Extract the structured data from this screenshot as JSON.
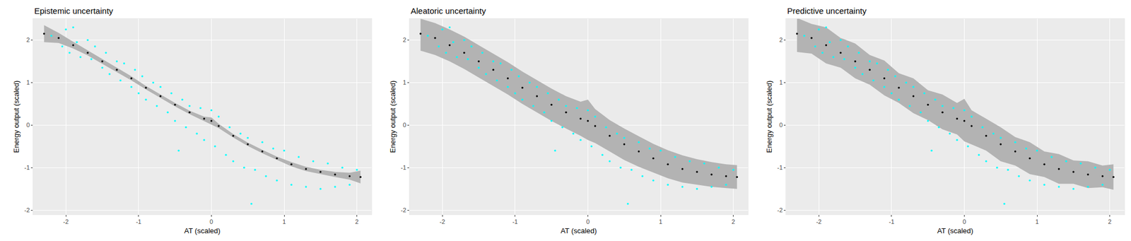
{
  "chart_data": [
    {
      "type": "scatter",
      "title": "Epistemic uncertainty",
      "x_label": "AT (scaled)",
      "y_label": "Energy output (scaled)",
      "xlim": [
        -2.45,
        2.2
      ],
      "ylim": [
        -2.1,
        2.5
      ],
      "xticks": [
        -2,
        -1,
        0,
        1,
        2
      ],
      "yticks": [
        -2,
        -1,
        0,
        1,
        2
      ],
      "grid": true,
      "series": [
        {
          "type": "band",
          "color": "#b3b3b3",
          "x": [
            -2.3,
            -2.1,
            -1.9,
            -1.7,
            -1.5,
            -1.3,
            -1.1,
            -0.9,
            -0.7,
            -0.5,
            -0.3,
            -0.1,
            0,
            0.1,
            0.3,
            0.5,
            0.7,
            0.9,
            1.1,
            1.3,
            1.5,
            1.7,
            1.9,
            2.05
          ],
          "lower": [
            1.95,
            1.93,
            1.8,
            1.64,
            1.44,
            1.25,
            1.05,
            0.84,
            0.64,
            0.44,
            0.26,
            0.1,
            0.02,
            -0.07,
            -0.29,
            -0.49,
            -0.66,
            -0.82,
            -0.97,
            -1.08,
            -1.15,
            -1.22,
            -1.28,
            -1.37
          ],
          "upper": [
            2.35,
            2.17,
            1.96,
            1.76,
            1.56,
            1.35,
            1.15,
            0.92,
            0.72,
            0.52,
            0.34,
            0.2,
            0.18,
            0.03,
            -0.21,
            -0.41,
            -0.58,
            -0.74,
            -0.87,
            -0.98,
            -1.05,
            -1.1,
            -1.12,
            -1.07
          ]
        },
        {
          "type": "scatter",
          "color": "#00ffff",
          "x": [
            -2.2,
            -2.05,
            -2.0,
            -1.95,
            -1.9,
            -1.85,
            -1.8,
            -1.7,
            -1.65,
            -1.6,
            -1.5,
            -1.45,
            -1.4,
            -1.3,
            -1.25,
            -1.2,
            -1.1,
            -1.05,
            -1.0,
            -0.95,
            -0.9,
            -0.8,
            -0.75,
            -0.7,
            -0.6,
            -0.55,
            -0.5,
            -0.4,
            -0.35,
            -0.3,
            -0.2,
            -0.15,
            -0.1,
            0,
            0.05,
            0.1,
            0.2,
            0.25,
            0.3,
            0.4,
            0.45,
            0.5,
            0.6,
            0.7,
            0.75,
            0.85,
            0.9,
            1.0,
            1.1,
            1.2,
            1.3,
            1.4,
            1.5,
            1.6,
            1.7,
            1.8,
            1.9,
            2.0,
            0.55,
            -0.45
          ],
          "values": [
            2.1,
            1.85,
            2.25,
            1.7,
            2.3,
            1.95,
            1.6,
            2.0,
            1.55,
            1.85,
            1.35,
            1.7,
            1.2,
            1.5,
            1.05,
            1.45,
            0.9,
            1.3,
            0.75,
            1.15,
            0.6,
            1.0,
            0.45,
            0.9,
            0.3,
            0.75,
            0.1,
            0.6,
            -0.05,
            0.45,
            -0.2,
            0.4,
            -0.35,
            0.35,
            -0.5,
            0.2,
            -0.7,
            -0.05,
            -0.85,
            -0.2,
            -1.0,
            -0.3,
            -1.05,
            -0.4,
            -1.2,
            -0.55,
            -1.3,
            -0.6,
            -1.4,
            -0.75,
            -1.45,
            -0.85,
            -1.5,
            -0.9,
            -1.45,
            -1.0,
            -1.4,
            -1.05,
            -1.85,
            -0.6
          ]
        },
        {
          "type": "scatter",
          "color": "#000000",
          "x": [
            -2.3,
            -2.1,
            -1.9,
            -1.7,
            -1.5,
            -1.3,
            -1.1,
            -0.9,
            -0.7,
            -0.5,
            -0.3,
            -0.1,
            0,
            0.1,
            0.3,
            0.5,
            0.7,
            0.9,
            1.1,
            1.3,
            1.5,
            1.7,
            1.9,
            2.05
          ],
          "values": [
            2.15,
            2.05,
            1.88,
            1.7,
            1.5,
            1.3,
            1.1,
            0.88,
            0.68,
            0.48,
            0.3,
            0.15,
            0.1,
            -0.02,
            -0.25,
            -0.45,
            -0.62,
            -0.78,
            -0.92,
            -1.03,
            -1.1,
            -1.16,
            -1.2,
            -1.22
          ]
        }
      ]
    },
    {
      "type": "scatter",
      "title": "Aleatoric uncertainty",
      "x_label": "AT (scaled)",
      "y_label": "Energy output (scaled)",
      "xlim": [
        -2.45,
        2.2
      ],
      "ylim": [
        -2.1,
        2.5
      ],
      "xticks": [
        -2,
        -1,
        0,
        1,
        2
      ],
      "yticks": [
        -2,
        -1,
        0,
        1,
        2
      ],
      "grid": true,
      "series": [
        {
          "type": "band",
          "color": "#b3b3b3",
          "x": [
            -2.3,
            -2.1,
            -1.9,
            -1.7,
            -1.5,
            -1.3,
            -1.1,
            -0.9,
            -0.7,
            -0.5,
            -0.3,
            -0.1,
            0,
            0.1,
            0.3,
            0.5,
            0.7,
            0.9,
            1.1,
            1.3,
            1.5,
            1.7,
            1.9,
            2.05
          ],
          "lower": [
            1.75,
            1.65,
            1.5,
            1.32,
            1.12,
            0.92,
            0.72,
            0.5,
            0.3,
            0.1,
            -0.08,
            -0.25,
            -0.35,
            -0.42,
            -0.62,
            -0.82,
            -0.98,
            -1.12,
            -1.25,
            -1.35,
            -1.4,
            -1.45,
            -1.48,
            -1.5
          ],
          "upper": [
            2.5,
            2.4,
            2.25,
            2.08,
            1.88,
            1.68,
            1.48,
            1.26,
            1.06,
            0.86,
            0.68,
            0.55,
            0.6,
            0.38,
            0.12,
            -0.08,
            -0.26,
            -0.44,
            -0.59,
            -0.71,
            -0.8,
            -0.87,
            -0.92,
            -0.94
          ]
        },
        {
          "type": "scatter",
          "color": "#00ffff",
          "x": [
            -2.2,
            -2.05,
            -2.0,
            -1.95,
            -1.9,
            -1.85,
            -1.8,
            -1.7,
            -1.65,
            -1.6,
            -1.5,
            -1.45,
            -1.4,
            -1.3,
            -1.25,
            -1.2,
            -1.1,
            -1.05,
            -1.0,
            -0.95,
            -0.9,
            -0.8,
            -0.75,
            -0.7,
            -0.6,
            -0.55,
            -0.5,
            -0.4,
            -0.35,
            -0.3,
            -0.2,
            -0.15,
            -0.1,
            0,
            0.05,
            0.1,
            0.2,
            0.25,
            0.3,
            0.4,
            0.45,
            0.5,
            0.6,
            0.7,
            0.75,
            0.85,
            0.9,
            1.0,
            1.1,
            1.2,
            1.3,
            1.4,
            1.5,
            1.6,
            1.7,
            1.8,
            1.9,
            2.0,
            0.55,
            -0.45
          ],
          "values": [
            2.1,
            1.85,
            2.25,
            1.7,
            2.3,
            1.95,
            1.6,
            2.0,
            1.55,
            1.85,
            1.35,
            1.7,
            1.2,
            1.5,
            1.05,
            1.45,
            0.9,
            1.3,
            0.75,
            1.15,
            0.6,
            1.0,
            0.45,
            0.9,
            0.3,
            0.75,
            0.1,
            0.6,
            -0.05,
            0.45,
            -0.2,
            0.4,
            -0.35,
            0.35,
            -0.5,
            0.2,
            -0.7,
            -0.05,
            -0.85,
            -0.2,
            -1.0,
            -0.3,
            -1.05,
            -0.4,
            -1.2,
            -0.55,
            -1.3,
            -0.6,
            -1.4,
            -0.75,
            -1.45,
            -0.85,
            -1.5,
            -0.9,
            -1.45,
            -1.0,
            -1.4,
            -1.05,
            -1.85,
            -0.6
          ]
        },
        {
          "type": "scatter",
          "color": "#000000",
          "x": [
            -2.3,
            -2.1,
            -1.9,
            -1.7,
            -1.5,
            -1.3,
            -1.1,
            -0.9,
            -0.7,
            -0.5,
            -0.3,
            -0.1,
            0,
            0.1,
            0.3,
            0.5,
            0.7,
            0.9,
            1.1,
            1.3,
            1.5,
            1.7,
            1.9,
            2.05
          ],
          "values": [
            2.15,
            2.05,
            1.88,
            1.7,
            1.5,
            1.3,
            1.1,
            0.88,
            0.68,
            0.48,
            0.3,
            0.15,
            0.1,
            -0.02,
            -0.25,
            -0.45,
            -0.62,
            -0.78,
            -0.92,
            -1.03,
            -1.1,
            -1.16,
            -1.2,
            -1.22
          ]
        }
      ]
    },
    {
      "type": "scatter",
      "title": "Predictive uncertainty",
      "x_label": "AT (scaled)",
      "y_label": "Energy output (scaled)",
      "xlim": [
        -2.45,
        2.2
      ],
      "ylim": [
        -2.1,
        2.5
      ],
      "xticks": [
        -2,
        -1,
        0,
        1,
        2
      ],
      "yticks": [
        -2,
        -1,
        0,
        1,
        2
      ],
      "grid": true,
      "series": [
        {
          "type": "band",
          "color": "#b3b3b3",
          "x": [
            -2.3,
            -2.1,
            -1.9,
            -1.7,
            -1.5,
            -1.3,
            -1.1,
            -0.9,
            -0.7,
            -0.5,
            -0.3,
            -0.1,
            0,
            0.1,
            0.3,
            0.5,
            0.7,
            0.9,
            1.1,
            1.3,
            1.5,
            1.7,
            1.9,
            2.05
          ],
          "lower": [
            1.72,
            1.68,
            1.45,
            1.35,
            1.1,
            0.95,
            0.7,
            0.52,
            0.28,
            0.12,
            -0.1,
            -0.22,
            -0.38,
            -0.45,
            -0.6,
            -0.85,
            -0.95,
            -1.15,
            -1.22,
            -1.38,
            -1.38,
            -1.48,
            -1.46,
            -1.52
          ],
          "upper": [
            2.52,
            2.38,
            2.3,
            2.05,
            1.92,
            1.65,
            1.52,
            1.22,
            1.1,
            0.82,
            0.72,
            0.52,
            0.62,
            0.35,
            0.15,
            -0.05,
            -0.28,
            -0.4,
            -0.62,
            -0.68,
            -0.83,
            -0.85,
            -0.95,
            -0.92
          ]
        },
        {
          "type": "scatter",
          "color": "#00ffff",
          "x": [
            -2.2,
            -2.05,
            -2.0,
            -1.95,
            -1.9,
            -1.85,
            -1.8,
            -1.7,
            -1.65,
            -1.6,
            -1.5,
            -1.45,
            -1.4,
            -1.3,
            -1.25,
            -1.2,
            -1.1,
            -1.05,
            -1.0,
            -0.95,
            -0.9,
            -0.8,
            -0.75,
            -0.7,
            -0.6,
            -0.55,
            -0.5,
            -0.4,
            -0.35,
            -0.3,
            -0.2,
            -0.15,
            -0.1,
            0,
            0.05,
            0.1,
            0.2,
            0.25,
            0.3,
            0.4,
            0.45,
            0.5,
            0.6,
            0.7,
            0.75,
            0.85,
            0.9,
            1.0,
            1.1,
            1.2,
            1.3,
            1.4,
            1.5,
            1.6,
            1.7,
            1.8,
            1.9,
            2.0,
            0.55,
            -0.45
          ],
          "values": [
            2.1,
            1.85,
            2.25,
            1.7,
            2.3,
            1.95,
            1.6,
            2.0,
            1.55,
            1.85,
            1.35,
            1.7,
            1.2,
            1.5,
            1.05,
            1.45,
            0.9,
            1.3,
            0.75,
            1.15,
            0.6,
            1.0,
            0.45,
            0.9,
            0.3,
            0.75,
            0.1,
            0.6,
            -0.05,
            0.45,
            -0.2,
            0.4,
            -0.35,
            0.35,
            -0.5,
            0.2,
            -0.7,
            -0.05,
            -0.85,
            -0.2,
            -1.0,
            -0.3,
            -1.05,
            -0.4,
            -1.2,
            -0.55,
            -1.3,
            -0.6,
            -1.4,
            -0.75,
            -1.45,
            -0.85,
            -1.5,
            -0.9,
            -1.45,
            -1.0,
            -1.4,
            -1.05,
            -1.85,
            -0.6
          ]
        },
        {
          "type": "scatter",
          "color": "#000000",
          "x": [
            -2.3,
            -2.1,
            -1.9,
            -1.7,
            -1.5,
            -1.3,
            -1.1,
            -0.9,
            -0.7,
            -0.5,
            -0.3,
            -0.1,
            0,
            0.1,
            0.3,
            0.5,
            0.7,
            0.9,
            1.1,
            1.3,
            1.5,
            1.7,
            1.9,
            2.05
          ],
          "values": [
            2.15,
            2.05,
            1.88,
            1.7,
            1.5,
            1.3,
            1.1,
            0.88,
            0.68,
            0.48,
            0.3,
            0.15,
            0.1,
            -0.02,
            -0.25,
            -0.45,
            -0.62,
            -0.78,
            -0.92,
            -1.03,
            -1.1,
            -1.16,
            -1.2,
            -1.22
          ]
        }
      ]
    }
  ]
}
